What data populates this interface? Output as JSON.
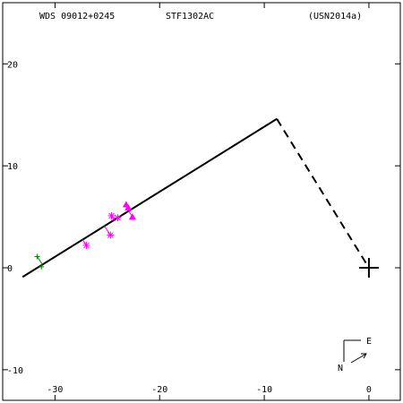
{
  "header": {
    "wds": "WDS 09012+0245",
    "discoverer": "STF1302AC",
    "catalog": "(USN2014a)"
  },
  "compass": {
    "east_label": "E",
    "north_label": "N"
  },
  "chart_data": {
    "type": "scatter",
    "title": "WDS 09012+0245   STF1302AC   (USN2014a)",
    "xlim": [
      -35,
      3
    ],
    "ylim": [
      -13,
      26
    ],
    "x_ticks": [
      -30,
      -20,
      -10,
      0
    ],
    "y_ticks": [
      -10,
      0,
      10,
      20
    ],
    "grid": false,
    "colors": {
      "axes": "#000000",
      "orbit": "#000000",
      "measures": "#ff00ff",
      "first_measures": "#008000"
    },
    "orbit_line": [
      [
        -33.1,
        -0.9
      ],
      [
        -8.8,
        14.6
      ]
    ],
    "node_line": [
      [
        -8.8,
        14.6
      ],
      [
        0,
        0
      ]
    ],
    "primary": {
      "x": 0,
      "y": 0,
      "marker": "+"
    },
    "measures": [
      {
        "x": -27.0,
        "y": 2.2,
        "marker": "asterisk"
      },
      {
        "x": -24.7,
        "y": 3.2,
        "marker": "asterisk"
      },
      {
        "x": -24.6,
        "y": 5.1,
        "marker": "asterisk"
      },
      {
        "x": -24.0,
        "y": 4.9,
        "marker": "asterisk"
      },
      {
        "x": -23.2,
        "y": 6.2,
        "marker": "triangle"
      },
      {
        "x": -23.0,
        "y": 5.9,
        "marker": "triangle"
      },
      {
        "x": -22.6,
        "y": 5.0,
        "marker": "triangle"
      }
    ],
    "first_measures": [
      {
        "x": -31.7,
        "y": 1.1,
        "marker": "plus"
      },
      {
        "x": -31.3,
        "y": 0.1,
        "marker": "plus"
      }
    ]
  }
}
